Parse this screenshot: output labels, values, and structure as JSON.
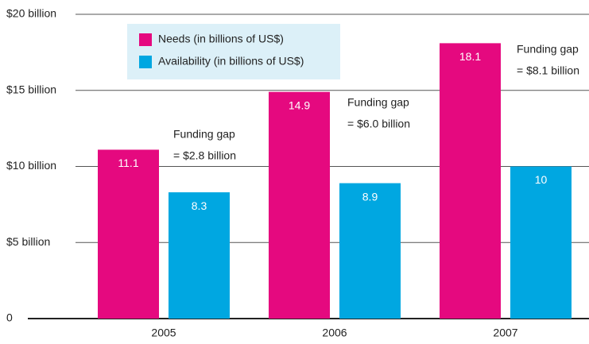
{
  "chart_data": {
    "type": "bar",
    "categories": [
      "2005",
      "2006",
      "2007"
    ],
    "series": [
      {
        "name": "Needs (in billions of US$)",
        "color": "#e5097f",
        "values": [
          11.1,
          14.9,
          18.1
        ]
      },
      {
        "name": "Availability (in billions of US$)",
        "color": "#00a7e1",
        "values": [
          8.3,
          8.9,
          10
        ]
      }
    ],
    "ylim": [
      0,
      20
    ],
    "yticks": [
      0,
      {
        "value": 5,
        "label": "$5 billion"
      },
      {
        "value": 10,
        "label": "$10 billion"
      },
      {
        "value": 15,
        "label": "$15 billion"
      },
      {
        "value": 20,
        "label": "$20 billion"
      }
    ],
    "grid": true,
    "annotations": [
      {
        "lines": [
          "Funding gap",
          "= $2.8 billion"
        ]
      },
      {
        "lines": [
          "Funding gap",
          "= $6.0 billion"
        ]
      },
      {
        "lines": [
          "Funding gap",
          "= $8.1 billion"
        ]
      }
    ]
  }
}
